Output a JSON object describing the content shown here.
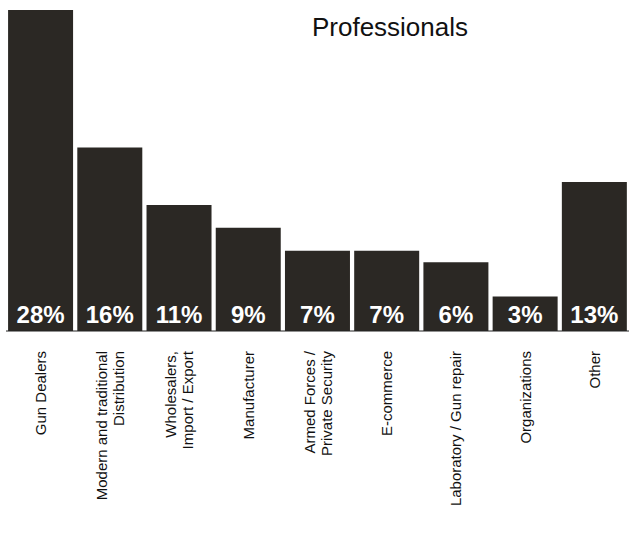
{
  "chart_data": {
    "type": "bar",
    "title": "Professionals",
    "categories": [
      "Gun Dealers",
      "Modern and traditional Distribution",
      "Wholesalers, Import / Export",
      "Manufacturer",
      "Armed Forces / Private Security",
      "E-commerce",
      "Laboratory / Gun repair",
      "Organizations",
      "Other"
    ],
    "values": [
      28,
      16,
      11,
      9,
      7,
      7,
      6,
      3,
      13
    ],
    "value_labels": [
      "28%",
      "16%",
      "11%",
      "9%",
      "7%",
      "7%",
      "6%",
      "3%",
      "13%"
    ],
    "color": "#2b2824",
    "ylim": [
      0,
      28
    ],
    "data_labels": true,
    "tick_labels": "x",
    "grid": false
  }
}
